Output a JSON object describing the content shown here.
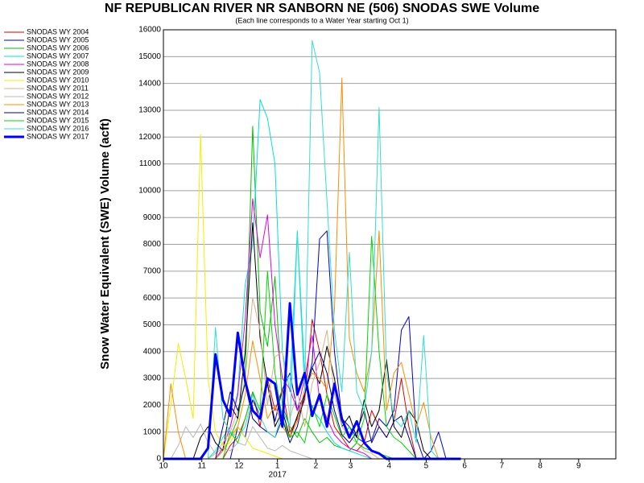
{
  "chart_data": {
    "type": "line",
    "title": "NF REPUBLICAN RIVER NR SANBORN NE (506) SNODAS SWE Volume",
    "subtitle": "(Each line corresponds to a Water Year starting Oct 1)",
    "y_label": "Snow Water Equivalent (SWE) Volume (acft)",
    "year_label": "2017",
    "grid": true,
    "legend": "left",
    "xlim": [
      0,
      365
    ],
    "xticks": [
      {
        "value": 0,
        "label": "10"
      },
      {
        "value": 31,
        "label": "11"
      },
      {
        "value": 61,
        "label": "12"
      },
      {
        "value": 92,
        "label": "1"
      },
      {
        "value": 123,
        "label": "2"
      },
      {
        "value": 151,
        "label": "3"
      },
      {
        "value": 182,
        "label": "4"
      },
      {
        "value": 212,
        "label": "5"
      },
      {
        "value": 243,
        "label": "6"
      },
      {
        "value": 273,
        "label": "7"
      },
      {
        "value": 304,
        "label": "8"
      },
      {
        "value": 335,
        "label": "9"
      }
    ],
    "ylim": [
      0,
      16000
    ],
    "yticks": [
      0,
      1000,
      2000,
      3000,
      4000,
      5000,
      6000,
      7000,
      8000,
      9000,
      10000,
      11000,
      12000,
      13000,
      14000,
      15000,
      16000
    ],
    "x": [
      0,
      6,
      12,
      18,
      24,
      30,
      36,
      42,
      48,
      54,
      60,
      66,
      72,
      78,
      84,
      90,
      96,
      102,
      108,
      114,
      120,
      126,
      132,
      138,
      144,
      150,
      156,
      162,
      168,
      174,
      180,
      186,
      192,
      198,
      204,
      210,
      216,
      222,
      228,
      234,
      240
    ],
    "series": [
      {
        "name": "SNODAS WY 2004",
        "color": "#e00000",
        "width": 1,
        "values": [
          0,
          0,
          0,
          0,
          0,
          0,
          0,
          0,
          0,
          500,
          800,
          1500,
          2500,
          1200,
          3000,
          1800,
          2600,
          1000,
          1500,
          2200,
          5200,
          4000,
          2400,
          1200,
          800,
          400,
          300,
          600,
          1800,
          1200,
          800,
          1400,
          3000,
          1200,
          0,
          0,
          0,
          0,
          0,
          0,
          0
        ]
      },
      {
        "name": "SNODAS WY 2005",
        "color": "#0000d0",
        "width": 1,
        "values": [
          0,
          0,
          0,
          0,
          0,
          0,
          0,
          0,
          0,
          0,
          1200,
          800,
          2200,
          1600,
          2800,
          1400,
          2600,
          3200,
          1800,
          2400,
          3600,
          8200,
          8500,
          4000,
          1500,
          1200,
          800,
          600,
          700,
          1500,
          1200,
          1800,
          4800,
          5300,
          800,
          0,
          300,
          1000,
          0,
          0,
          0
        ]
      },
      {
        "name": "SNODAS WY 2006",
        "color": "#00c000",
        "width": 1,
        "values": [
          0,
          0,
          0,
          0,
          0,
          0,
          0,
          0,
          300,
          800,
          1500,
          3000,
          12400,
          5500,
          4200,
          6800,
          2000,
          1200,
          800,
          1500,
          1000,
          600,
          800,
          500,
          400,
          300,
          600,
          400,
          300,
          200,
          100,
          0,
          0,
          0,
          0,
          0,
          0,
          0,
          0,
          0,
          0
        ]
      },
      {
        "name": "SNODAS WY 2007",
        "color": "#00e0e0",
        "width": 1,
        "values": [
          0,
          0,
          0,
          0,
          0,
          0,
          0,
          300,
          800,
          1200,
          2500,
          6500,
          8000,
          13400,
          12700,
          11000,
          4000,
          2500,
          8500,
          3200,
          1800,
          1500,
          1000,
          600,
          400,
          300,
          200,
          100,
          0,
          0,
          0,
          0,
          0,
          0,
          0,
          0,
          0,
          0,
          0,
          0,
          0
        ]
      },
      {
        "name": "SNODAS WY 2008",
        "color": "#e000e0",
        "width": 1,
        "values": [
          0,
          0,
          0,
          0,
          0,
          0,
          0,
          0,
          400,
          1200,
          2400,
          5200,
          9700,
          7500,
          9100,
          5000,
          3000,
          2600,
          1800,
          3000,
          4600,
          2200,
          1500,
          900,
          600,
          400,
          300,
          200,
          0,
          0,
          0,
          0,
          0,
          0,
          0,
          0,
          0,
          0,
          0,
          0,
          0
        ]
      },
      {
        "name": "SNODAS WY 2009",
        "color": "#000000",
        "width": 1,
        "values": [
          0,
          0,
          0,
          0,
          0,
          800,
          1200,
          600,
          300,
          2000,
          1500,
          4000,
          8800,
          4500,
          2800,
          1200,
          1800,
          800,
          1600,
          2400,
          3400,
          2800,
          4200,
          3000,
          1200,
          1600,
          800,
          2200,
          1200,
          1800,
          3700,
          1200,
          800,
          1800,
          1400,
          300,
          0,
          0,
          0,
          0,
          0
        ]
      },
      {
        "name": "SNODAS WY 2010",
        "color": "#f0f000",
        "width": 1,
        "values": [
          0,
          2000,
          4300,
          3000,
          1500,
          12100,
          3000,
          1000,
          500,
          600,
          1200,
          800,
          400,
          300,
          200,
          100,
          0,
          0,
          0,
          0,
          0,
          0,
          0,
          0,
          0,
          0,
          0,
          0,
          0,
          0,
          0,
          0,
          0,
          0,
          0,
          0,
          0,
          0,
          0,
          0,
          0
        ]
      },
      {
        "name": "SNODAS WY 2011",
        "color": "#d2b48c",
        "width": 1,
        "values": [
          0,
          0,
          0,
          0,
          0,
          0,
          0,
          200,
          600,
          1000,
          1800,
          3000,
          6000,
          4800,
          2000,
          3800,
          4000,
          1500,
          2500,
          1200,
          2800,
          3600,
          4800,
          2400,
          1200,
          800,
          600,
          300,
          200,
          0,
          0,
          0,
          0,
          0,
          0,
          0,
          0,
          0,
          0,
          0,
          0
        ]
      },
      {
        "name": "SNODAS WY 2012",
        "color": "#b8b8b8",
        "width": 1,
        "values": [
          0,
          0,
          500,
          1200,
          800,
          1300,
          600,
          200,
          400,
          300,
          600,
          500,
          1200,
          800,
          400,
          300,
          500,
          300,
          200,
          100,
          0,
          0,
          0,
          0,
          0,
          0,
          0,
          0,
          0,
          0,
          0,
          0,
          0,
          0,
          0,
          0,
          0,
          0,
          0,
          0,
          0
        ]
      },
      {
        "name": "SNODAS WY 2013",
        "color": "#ff8c00",
        "width": 1,
        "values": [
          0,
          2800,
          1000,
          0,
          0,
          0,
          0,
          0,
          300,
          800,
          1200,
          2400,
          4400,
          3000,
          1500,
          2000,
          1200,
          800,
          1400,
          2600,
          3200,
          3000,
          2600,
          5600,
          14200,
          4500,
          3200,
          2500,
          4000,
          8500,
          1800,
          3200,
          3600,
          2400,
          1200,
          2100,
          800,
          0,
          0,
          0,
          0
        ]
      },
      {
        "name": "SNODAS WY 2014",
        "color": "#000080",
        "width": 1,
        "values": [
          0,
          0,
          0,
          0,
          0,
          0,
          0,
          0,
          1200,
          2500,
          1800,
          2800,
          1500,
          1200,
          1000,
          800,
          1500,
          600,
          1200,
          2400,
          3400,
          4000,
          3200,
          1800,
          900,
          600,
          1000,
          1800,
          600,
          1200,
          800,
          1400,
          1600,
          800,
          0,
          0,
          0,
          0,
          0,
          0,
          0
        ]
      },
      {
        "name": "SNODAS WY 2015",
        "color": "#00d800",
        "width": 1,
        "values": [
          0,
          0,
          0,
          0,
          0,
          0,
          0,
          0,
          0,
          1000,
          600,
          1500,
          2500,
          1800,
          7000,
          3200,
          1500,
          800,
          1000,
          600,
          2000,
          1200,
          2400,
          1600,
          800,
          1200,
          600,
          1500,
          8300,
          4000,
          1200,
          800,
          600,
          300,
          0,
          0,
          0,
          0,
          0,
          0,
          0
        ]
      },
      {
        "name": "SNODAS WY 2016",
        "color": "#30e0d0",
        "width": 1,
        "values": [
          0,
          0,
          0,
          0,
          0,
          0,
          0,
          4900,
          1500,
          1000,
          800,
          1200,
          2400,
          1600,
          1000,
          800,
          1800,
          1200,
          8400,
          2500,
          15600,
          14400,
          9600,
          4800,
          2500,
          7700,
          2500,
          1800,
          4000,
          13100,
          3200,
          1500,
          1200,
          1800,
          600,
          4600,
          300,
          0,
          0,
          0,
          0
        ]
      },
      {
        "name": "SNODAS WY 2017",
        "color": "#0000ff",
        "width": 3,
        "values": [
          0,
          0,
          0,
          0,
          0,
          0,
          400,
          3900,
          2200,
          1600,
          4700,
          2900,
          1800,
          1500,
          3000,
          2800,
          1200,
          5800,
          2400,
          3200,
          1600,
          2400,
          1200,
          2800,
          1500,
          800,
          1400,
          600,
          300,
          200,
          0,
          0,
          0,
          0,
          0,
          0,
          0,
          0,
          0,
          0,
          0
        ]
      }
    ]
  }
}
